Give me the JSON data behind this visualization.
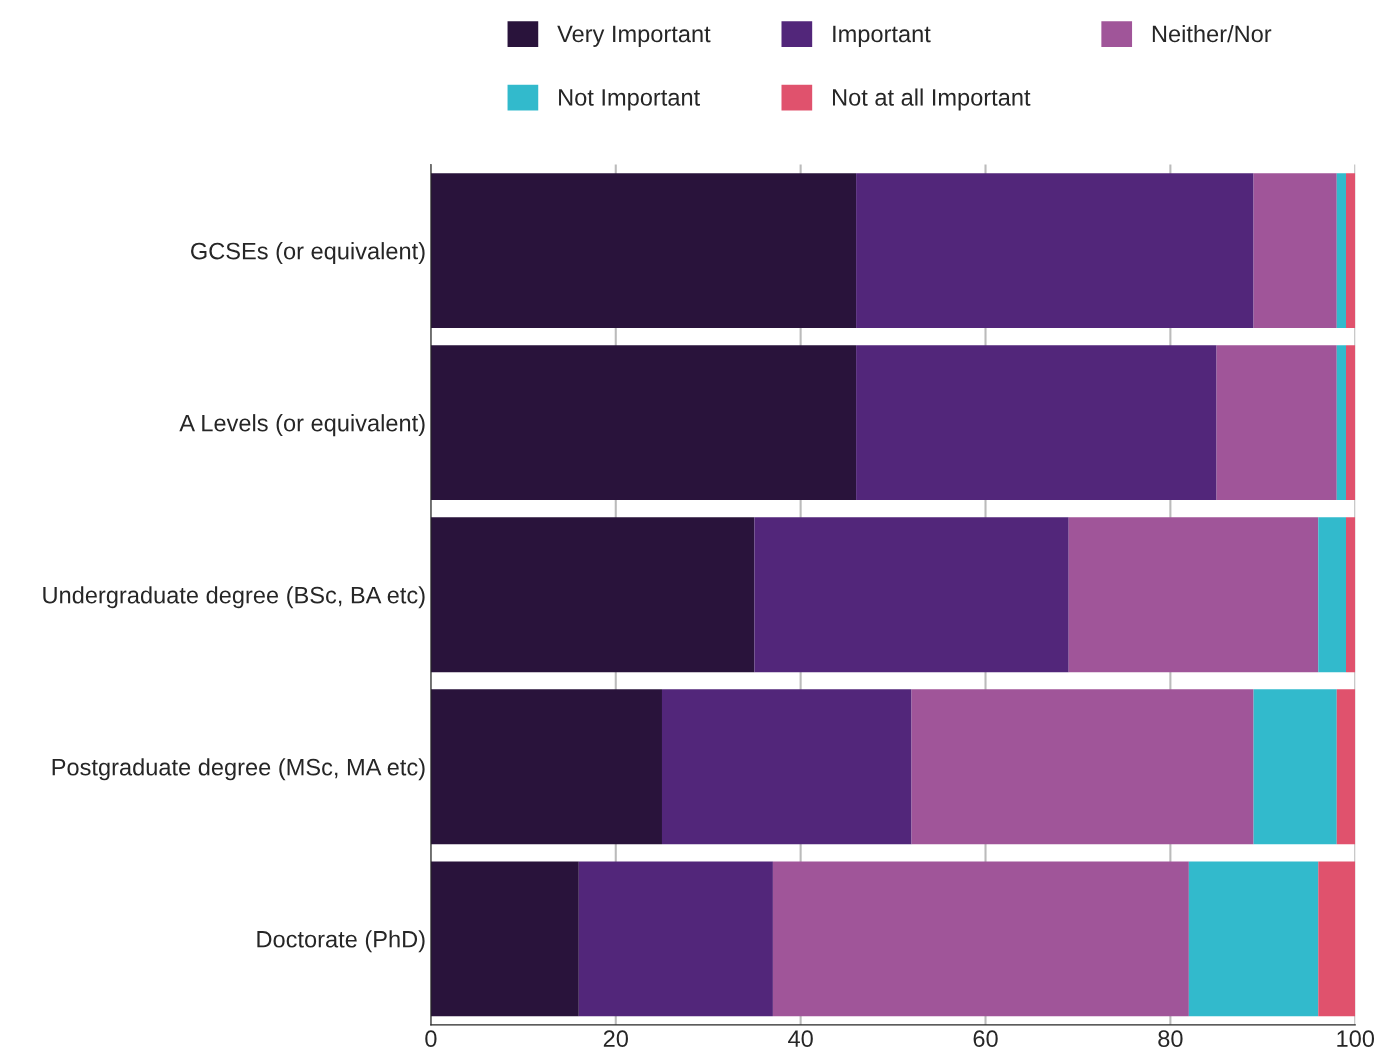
{
  "chart_data": {
    "type": "bar",
    "orientation": "horizontal",
    "stacked": true,
    "categories": [
      "GCSEs (or equivalent)",
      "A Levels (or equivalent)",
      "Undergraduate degree (BSc, BA etc)",
      "Postgraduate degree (MSc, MA etc)",
      "Doctorate (PhD)"
    ],
    "series": [
      {
        "name": "Very Important",
        "color": "#29133b",
        "values": [
          46,
          46,
          35,
          25,
          16
        ]
      },
      {
        "name": "Important",
        "color": "#52267a",
        "values": [
          43,
          39,
          34,
          27,
          21
        ]
      },
      {
        "name": "Neither/Nor",
        "color": "#a05599",
        "values": [
          9,
          13,
          27,
          37,
          45
        ]
      },
      {
        "name": "Not Important",
        "color": "#32bacc",
        "values": [
          1,
          1,
          3,
          9,
          14
        ]
      },
      {
        "name": "Not at all Important",
        "color": "#e0526d",
        "values": [
          1,
          1,
          1,
          2,
          4
        ]
      }
    ],
    "xlim": [
      0,
      100
    ],
    "xticks": [
      0,
      20,
      40,
      60,
      80,
      100
    ],
    "grid": "x",
    "legend": "top"
  }
}
